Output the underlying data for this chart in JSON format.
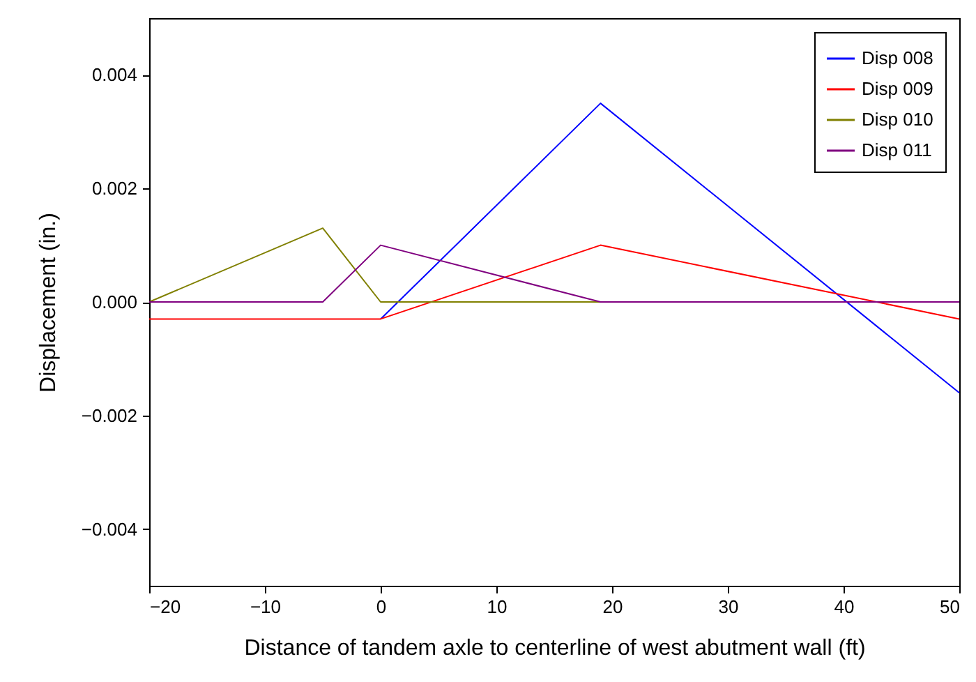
{
  "chart_data": {
    "type": "line",
    "xlabel": "Distance of tandem axle to centerline of west abutment wall (ft)",
    "ylabel": "Displacement (in.)",
    "x": [
      -20,
      -5,
      0,
      19,
      50
    ],
    "series": [
      {
        "name": "Disp 008",
        "color": "#0000ff",
        "values": [
          null,
          null,
          -0.0003,
          0.0035,
          -0.0016
        ]
      },
      {
        "name": "Disp 009",
        "color": "#ff0000",
        "values": [
          -0.0003,
          -0.0003,
          -0.0003,
          0.001,
          -0.0003
        ]
      },
      {
        "name": "Disp 010",
        "color": "#808000",
        "values": [
          0,
          0.0013,
          0,
          0,
          0
        ]
      },
      {
        "name": "Disp 011",
        "color": "#800080",
        "values": [
          0,
          0,
          0.001,
          0,
          0
        ]
      }
    ],
    "xlim": [
      -20,
      50
    ],
    "xticks": [
      -20,
      -10,
      0,
      10,
      20,
      30,
      40,
      50
    ],
    "ylim": [
      -0.005,
      0.005
    ],
    "yticks": [
      -0.004,
      -0.002,
      {
        "value": 0,
        "label": "0.000"
      },
      0.002,
      0.004
    ],
    "grid": false,
    "legend": "top right",
    "marker": "none",
    "line_style": "solid"
  }
}
